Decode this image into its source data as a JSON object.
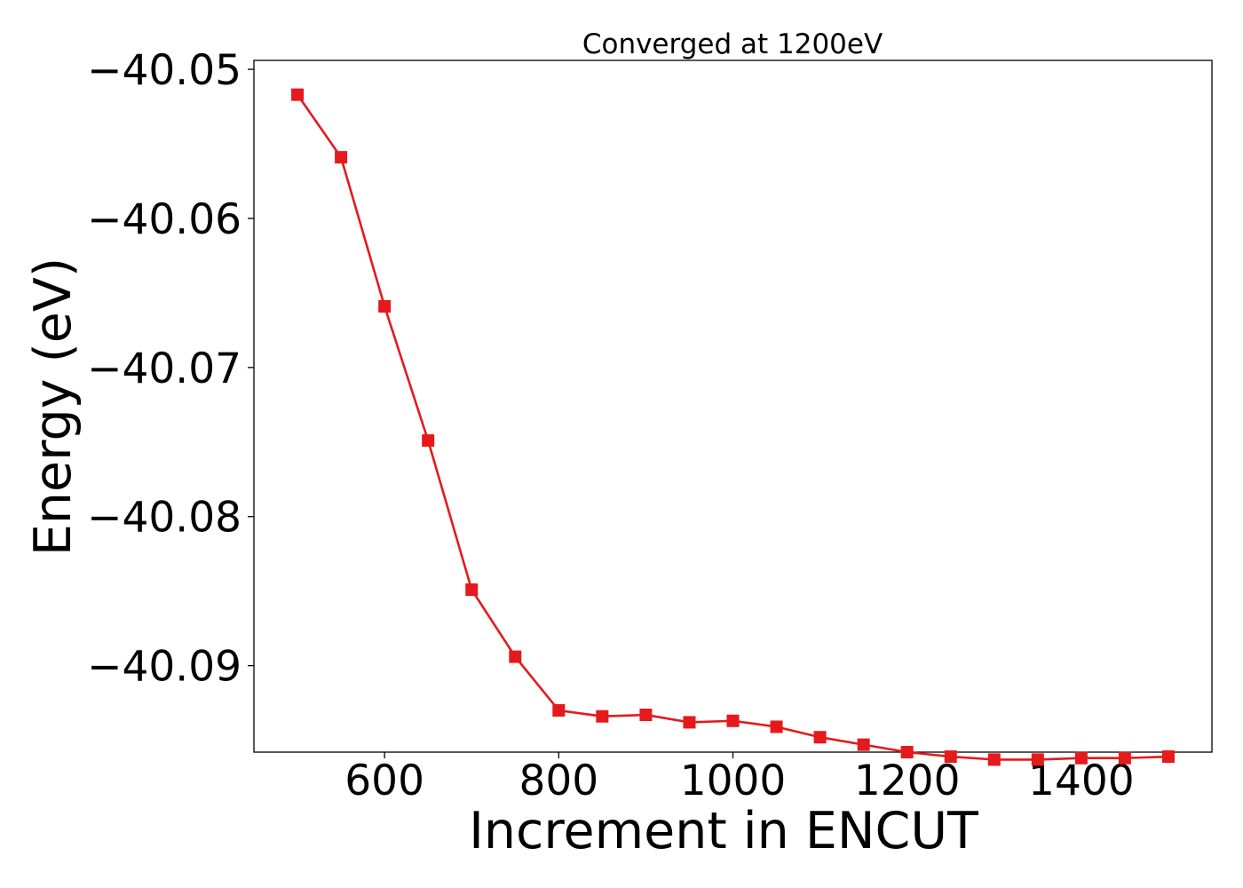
{
  "chart_data": {
    "type": "line",
    "title": "Converged at 1200eV",
    "xlabel": "Increment in ENCUT",
    "ylabel": "Energy (eV)",
    "xlim": [
      450,
      1550
    ],
    "ylim": [
      -40.0958,
      -40.0494
    ],
    "x_ticks": [
      600,
      800,
      1000,
      1200,
      1400
    ],
    "x_tick_labels": [
      "600",
      "800",
      "1000",
      "1200",
      "1400"
    ],
    "y_ticks": [
      -40.05,
      -40.06,
      -40.07,
      -40.08,
      -40.09
    ],
    "y_tick_labels": [
      "−40.05",
      "−40.06",
      "−40.07",
      "−40.08",
      "−40.09"
    ],
    "grid": false,
    "series": [
      {
        "color": "#e41a1c",
        "marker": "square",
        "x": [
          500,
          550,
          600,
          650,
          700,
          750,
          800,
          850,
          900,
          950,
          1000,
          1050,
          1100,
          1150,
          1200,
          1250,
          1300,
          1350,
          1400,
          1450,
          1500
        ],
        "y": [
          -40.0517,
          -40.0559,
          -40.0659,
          -40.0749,
          -40.0849,
          -40.0894,
          -40.093,
          -40.0934,
          -40.0933,
          -40.0938,
          -40.0937,
          -40.0941,
          -40.0948,
          -40.0953,
          -40.0958,
          -40.0961,
          -40.0963,
          -40.0963,
          -40.0962,
          -40.0962,
          -40.0961
        ]
      }
    ]
  }
}
